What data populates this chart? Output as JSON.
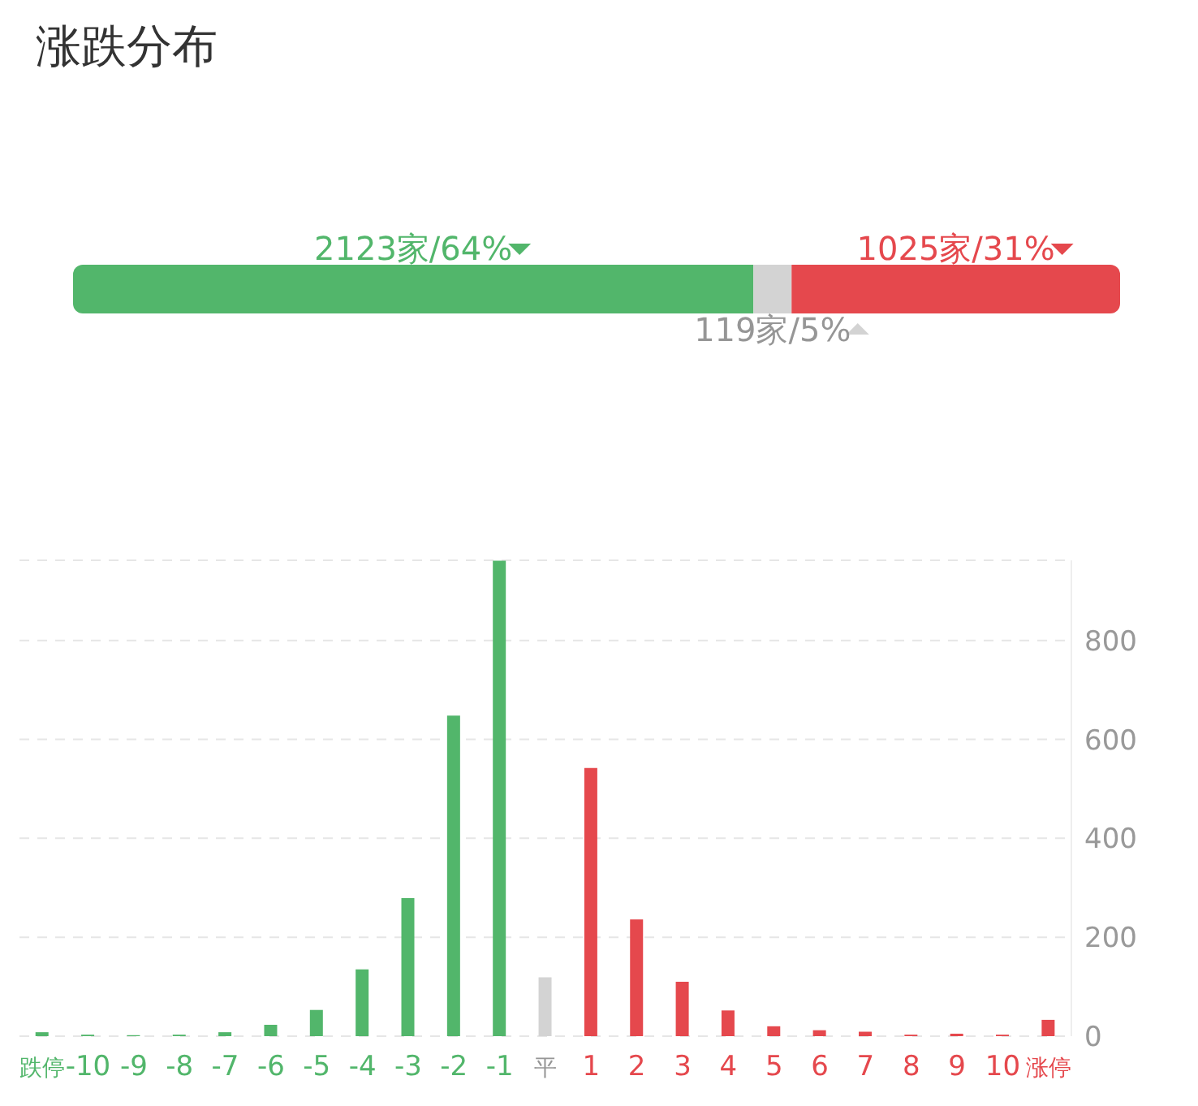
{
  "chart_data": [
    {
      "type": "bar",
      "title": "涨跌分布",
      "orientation": "horizontal",
      "stacked": true,
      "categories": [
        null
      ],
      "tick_labels": false,
      "series": [
        {
          "color": "#52b66b",
          "values": [
            2123
          ],
          "value_labels": [
            "2123家/64%"
          ]
        },
        {
          "color": "#d3d3d3",
          "values": [
            119
          ],
          "value_labels": [
            "119家/5%"
          ]
        },
        {
          "color": "#e5484d",
          "values": [
            1025
          ],
          "value_labels": [
            "1025家/31%"
          ]
        }
      ]
    },
    {
      "type": "bar",
      "categories": [
        "跌停",
        "-10",
        "-9",
        "-8",
        "-7",
        "-6",
        "-5",
        "-4",
        "-3",
        "-2",
        "-1",
        "平",
        "1",
        "2",
        "3",
        "4",
        "5",
        "6",
        "7",
        "8",
        "9",
        "10",
        "涨停"
      ],
      "values": [
        8,
        3,
        2,
        3,
        8,
        23,
        53,
        135,
        279,
        648,
        961,
        119,
        542,
        236,
        110,
        52,
        20,
        12,
        9,
        3,
        5,
        3,
        33
      ],
      "colors": [
        "#52b66b",
        "#52b66b",
        "#52b66b",
        "#52b66b",
        "#52b66b",
        "#52b66b",
        "#52b66b",
        "#52b66b",
        "#52b66b",
        "#52b66b",
        "#52b66b",
        "#d3d3d3",
        "#e5484d",
        "#e5484d",
        "#e5484d",
        "#e5484d",
        "#e5484d",
        "#e5484d",
        "#e5484d",
        "#e5484d",
        "#e5484d",
        "#e5484d",
        "#e5484d"
      ],
      "ylim": [
        0,
        962
      ],
      "yticks": [
        0,
        200,
        400,
        600,
        800
      ],
      "grid": "y"
    }
  ]
}
